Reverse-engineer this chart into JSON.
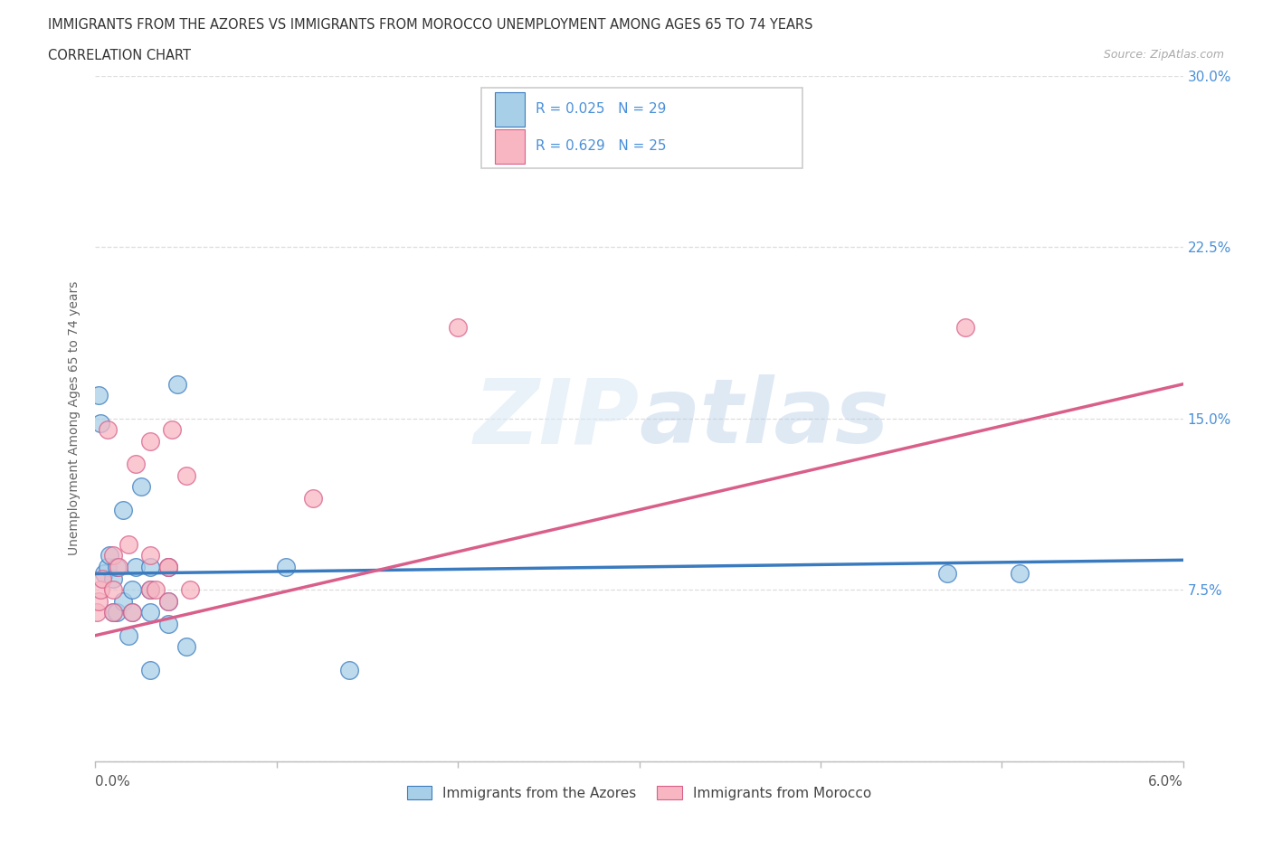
{
  "title_line1": "IMMIGRANTS FROM THE AZORES VS IMMIGRANTS FROM MOROCCO UNEMPLOYMENT AMONG AGES 65 TO 74 YEARS",
  "title_line2": "CORRELATION CHART",
  "source_text": "Source: ZipAtlas.com",
  "ylabel": "Unemployment Among Ages 65 to 74 years",
  "legend_azores": "Immigrants from the Azores",
  "legend_morocco": "Immigrants from Morocco",
  "r_azores": "R = 0.025",
  "n_azores": "N = 29",
  "r_morocco": "R = 0.629",
  "n_morocco": "N = 25",
  "color_azores": "#a8cfe8",
  "color_morocco": "#f7b6c2",
  "color_azores_line": "#3a7bbf",
  "color_morocco_line": "#d95f8a",
  "color_tick": "#4a90d9",
  "azores_x": [
    0.0002,
    0.0003,
    0.0005,
    0.0007,
    0.0008,
    0.001,
    0.001,
    0.0012,
    0.0012,
    0.0015,
    0.0015,
    0.0018,
    0.002,
    0.002,
    0.0022,
    0.0025,
    0.003,
    0.003,
    0.003,
    0.003,
    0.004,
    0.004,
    0.004,
    0.0045,
    0.005,
    0.0105,
    0.014,
    0.047,
    0.051
  ],
  "azores_y": [
    0.16,
    0.148,
    0.082,
    0.085,
    0.09,
    0.065,
    0.08,
    0.065,
    0.085,
    0.07,
    0.11,
    0.055,
    0.065,
    0.075,
    0.085,
    0.12,
    0.04,
    0.065,
    0.075,
    0.085,
    0.06,
    0.07,
    0.085,
    0.165,
    0.05,
    0.085,
    0.04,
    0.082,
    0.082
  ],
  "morocco_x": [
    0.0001,
    0.0002,
    0.0003,
    0.0004,
    0.0007,
    0.001,
    0.001,
    0.001,
    0.0013,
    0.0018,
    0.002,
    0.0022,
    0.003,
    0.003,
    0.003,
    0.0033,
    0.004,
    0.004,
    0.004,
    0.0042,
    0.005,
    0.0052,
    0.012,
    0.02,
    0.048
  ],
  "morocco_y": [
    0.065,
    0.07,
    0.075,
    0.08,
    0.145,
    0.065,
    0.075,
    0.09,
    0.085,
    0.095,
    0.065,
    0.13,
    0.075,
    0.09,
    0.14,
    0.075,
    0.07,
    0.085,
    0.085,
    0.145,
    0.125,
    0.075,
    0.115,
    0.19,
    0.19
  ],
  "azores_trend_x": [
    0.0,
    0.06
  ],
  "azores_trend_y": [
    0.082,
    0.088
  ],
  "morocco_trend_x": [
    0.0,
    0.06
  ],
  "morocco_trend_y": [
    0.055,
    0.165
  ],
  "xlim": [
    0.0,
    0.06
  ],
  "ylim": [
    0.0,
    0.3
  ],
  "yticks": [
    0.0,
    0.075,
    0.15,
    0.225,
    0.3
  ],
  "ytick_labels": [
    "",
    "7.5%",
    "15.0%",
    "22.5%",
    "30.0%"
  ],
  "xtick_positions": [
    0.0,
    0.01,
    0.02,
    0.03,
    0.04,
    0.05,
    0.06
  ]
}
